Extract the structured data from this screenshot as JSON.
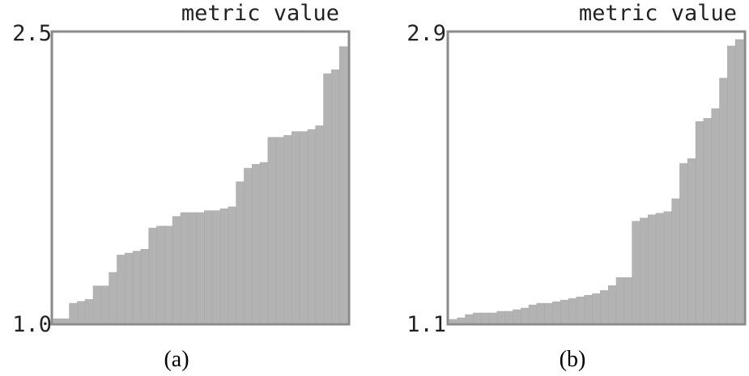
{
  "chart_data": [
    {
      "type": "bar",
      "panel_label": "(a)",
      "ylabel": "metric value",
      "ylim": [
        1.0,
        2.5
      ],
      "y_tick_labels": [
        "2.5",
        "1.0"
      ],
      "grid": false,
      "values": [
        1.02,
        1.02,
        1.1,
        1.11,
        1.12,
        1.19,
        1.19,
        1.26,
        1.35,
        1.36,
        1.37,
        1.38,
        1.49,
        1.5,
        1.5,
        1.55,
        1.57,
        1.57,
        1.57,
        1.58,
        1.58,
        1.59,
        1.6,
        1.73,
        1.8,
        1.82,
        1.83,
        1.96,
        1.96,
        1.97,
        1.99,
        1.99,
        2.0,
        2.02,
        2.29,
        2.31,
        2.43
      ]
    },
    {
      "type": "bar",
      "panel_label": "(b)",
      "ylabel": "metric value",
      "ylim": [
        1.1,
        2.9
      ],
      "y_tick_labels": [
        "2.9",
        "1.1"
      ],
      "grid": false,
      "values": [
        1.12,
        1.13,
        1.15,
        1.16,
        1.16,
        1.16,
        1.17,
        1.17,
        1.18,
        1.19,
        1.21,
        1.22,
        1.22,
        1.23,
        1.24,
        1.25,
        1.26,
        1.27,
        1.28,
        1.3,
        1.33,
        1.38,
        1.38,
        1.73,
        1.75,
        1.77,
        1.78,
        1.79,
        1.87,
        2.09,
        2.12,
        2.35,
        2.37,
        2.43,
        2.62,
        2.82,
        2.86
      ]
    }
  ]
}
